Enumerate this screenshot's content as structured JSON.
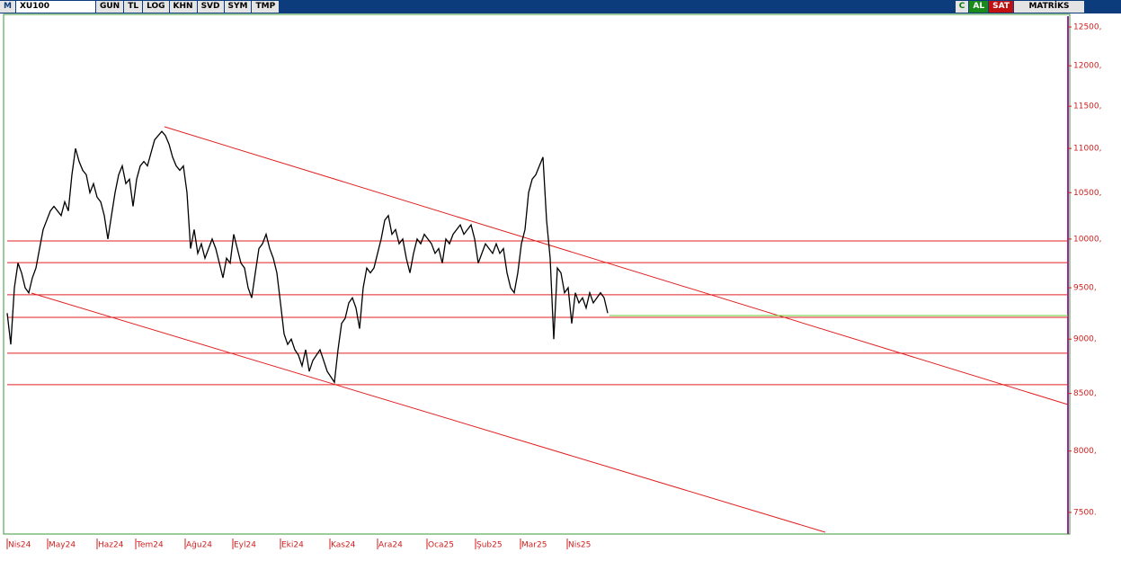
{
  "toolbar": {
    "logo": "M",
    "symbol": "XU100",
    "buttons": [
      "GUN",
      "TL",
      "LOG",
      "KHN",
      "SVD",
      "SYM",
      "TMP"
    ],
    "right_buttons": [
      "C",
      "AL",
      "SAT",
      "MATRİKS"
    ]
  },
  "chart_data": {
    "type": "line",
    "log_scale": true,
    "color": "#000000",
    "values": [
      9250,
      8950,
      9500,
      9750,
      9650,
      9500,
      9450,
      9600,
      9700,
      9900,
      10100,
      10200,
      10300,
      10350,
      10300,
      10250,
      10400,
      10300,
      10700,
      11000,
      10850,
      10750,
      10700,
      10500,
      10600,
      10450,
      10400,
      10250,
      10000,
      10250,
      10500,
      10700,
      10800,
      10600,
      10650,
      10350,
      10650,
      10800,
      10850,
      10800,
      10950,
      11100,
      11150,
      11200,
      11150,
      11050,
      10900,
      10800,
      10750,
      10800,
      10500,
      9900,
      10100,
      9850,
      9950,
      9800,
      9900,
      10000,
      9900,
      9750,
      9600,
      9800,
      9750,
      10050,
      9900,
      9750,
      9700,
      9500,
      9400,
      9650,
      9900,
      9950,
      10050,
      9900,
      9800,
      9650,
      9350,
      9050,
      8950,
      9000,
      8900,
      8850,
      8750,
      8900,
      8700,
      8800,
      8850,
      8900,
      8800,
      8700,
      8650,
      8600,
      8900,
      9150,
      9200,
      9350,
      9400,
      9300,
      9100,
      9500,
      9700,
      9650,
      9700,
      9850,
      10000,
      10200,
      10250,
      10050,
      10100,
      9950,
      10000,
      9800,
      9650,
      9850,
      10000,
      9950,
      10050,
      10000,
      9950,
      9850,
      9900,
      9750,
      10000,
      9950,
      10050,
      10100,
      10150,
      10050,
      10100,
      10150,
      10000,
      9750,
      9850,
      9950,
      9900,
      9850,
      9950,
      9850,
      9900,
      9650,
      9500,
      9450,
      9650,
      9950,
      10100,
      10500,
      10650,
      10700,
      10800,
      10900,
      10200,
      9800,
      9000,
      9700,
      9650,
      9450,
      9500,
      9150,
      9450,
      9350,
      9400,
      9300,
      9450,
      9350,
      9400,
      9450,
      9400,
      9250
    ],
    "xlim": [
      0,
      295
    ],
    "xticks": [
      {
        "value": 0,
        "label": "Nis24"
      },
      {
        "value": 11.25,
        "label": "May24"
      },
      {
        "value": 25,
        "label": "Haz24"
      },
      {
        "value": 35.75,
        "label": "Tem24"
      },
      {
        "value": 49.5,
        "label": "Ağu24"
      },
      {
        "value": 62.75,
        "label": "Eyl24"
      },
      {
        "value": 76,
        "label": "Eki24"
      },
      {
        "value": 89.75,
        "label": "Kas24"
      },
      {
        "value": 103,
        "label": "Ara24"
      },
      {
        "value": 116.75,
        "label": "Oca25"
      },
      {
        "value": 130.25,
        "label": "Şub25"
      },
      {
        "value": 142.75,
        "label": "Mar25"
      },
      {
        "value": 155.75,
        "label": "Nis25"
      }
    ],
    "ylim": [
      7345,
      12643
    ],
    "yticks": [
      {
        "value": 12500,
        "label": "12500,"
      },
      {
        "value": 12000,
        "label": "12000,"
      },
      {
        "value": 11500,
        "label": "11500,"
      },
      {
        "value": 11000,
        "label": "11000,"
      },
      {
        "value": 10500,
        "label": "10500,"
      },
      {
        "value": 10000,
        "label": "10000,"
      },
      {
        "value": 9500,
        "label": "9500,"
      },
      {
        "value": 9000,
        "label": "9000,"
      },
      {
        "value": 8500,
        "label": "8500,"
      },
      {
        "value": 8000,
        "label": "8000,"
      },
      {
        "value": 7500,
        "label": "7500."
      }
    ],
    "lines": [
      {
        "x": [
          0,
          295
        ],
        "values": [
          9980,
          9980
        ],
        "color": "#e02020"
      },
      {
        "x": [
          0,
          295
        ],
        "values": [
          9755,
          9755
        ],
        "color": "#e02020"
      },
      {
        "x": [
          0,
          295
        ],
        "values": [
          9430,
          9430
        ],
        "color": "#e02020"
      },
      {
        "x": [
          0,
          295
        ],
        "values": [
          9209,
          9209
        ],
        "color": "#e02020"
      },
      {
        "x": [
          0,
          295
        ],
        "values": [
          8868,
          8868
        ],
        "color": "#e02020"
      },
      {
        "x": [
          0,
          295
        ],
        "values": [
          8579,
          8579
        ],
        "color": "#e02020"
      },
      {
        "x": [
          43.75,
          295
        ],
        "values": [
          11254,
          8401
        ],
        "color": "#e02020"
      },
      {
        "x": [
          6.75,
          227.5
        ],
        "values": [
          9447,
          7345
        ],
        "color": "#e02020"
      },
      {
        "x": [
          167.5,
          295
        ],
        "values": [
          9226,
          9226
        ],
        "color": "#66cc33"
      }
    ]
  }
}
